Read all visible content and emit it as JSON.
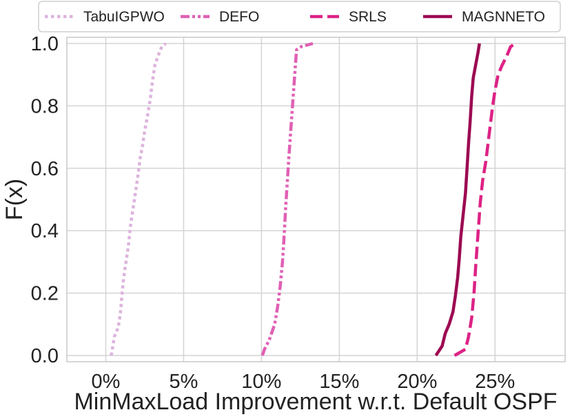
{
  "chart_data": {
    "type": "line",
    "title": "",
    "xlabel": "MinMaxLoad Improvement w.r.t. Default OSPF",
    "ylabel": "F(x)",
    "xlim": [
      -2.5,
      29.5
    ],
    "ylim": [
      -0.02,
      1.02
    ],
    "xticks": [
      0,
      5,
      10,
      15,
      20,
      25
    ],
    "xtick_labels": [
      "0%",
      "5%",
      "10%",
      "15%",
      "20%",
      "25%"
    ],
    "yticks": [
      0.0,
      0.2,
      0.4,
      0.6,
      0.8,
      1.0
    ],
    "ytick_labels": [
      "0.0",
      "0.2",
      "0.4",
      "0.6",
      "0.8",
      "1.0"
    ],
    "grid": true,
    "legend_position": "top",
    "series": [
      {
        "name": "TabuIGPWO",
        "color": "#dcb3dc",
        "dash": "dotted",
        "x": [
          0.35,
          0.45,
          0.55,
          0.8,
          0.95,
          1.05,
          1.15,
          1.3,
          1.45,
          1.6,
          1.75,
          1.9,
          2.05,
          2.2,
          2.35,
          2.5,
          2.65,
          2.85,
          3.0,
          3.15,
          3.35,
          3.6,
          3.85
        ],
        "y": [
          0.0,
          0.03,
          0.06,
          0.09,
          0.14,
          0.2,
          0.25,
          0.3,
          0.35,
          0.42,
          0.47,
          0.52,
          0.57,
          0.63,
          0.67,
          0.72,
          0.76,
          0.82,
          0.88,
          0.93,
          0.96,
          0.99,
          1.0
        ]
      },
      {
        "name": "DEFO",
        "color": "#e060b4",
        "dash": "dashdotdot",
        "x": [
          10.05,
          10.2,
          10.5,
          10.85,
          11.05,
          11.2,
          11.35,
          11.45,
          11.55,
          11.65,
          11.75,
          11.85,
          11.95,
          12.05,
          12.15,
          12.25,
          12.55,
          13.3
        ],
        "y": [
          0.0,
          0.02,
          0.05,
          0.1,
          0.16,
          0.22,
          0.3,
          0.38,
          0.47,
          0.55,
          0.63,
          0.7,
          0.77,
          0.84,
          0.91,
          0.98,
          0.99,
          1.0
        ]
      },
      {
        "name": "SRLS",
        "color": "#dd2286",
        "dash": "dashed",
        "x": [
          22.4,
          23.1,
          23.3,
          23.5,
          23.65,
          23.75,
          23.85,
          23.95,
          24.05,
          24.2,
          24.4,
          24.55,
          24.7,
          24.85,
          25.0,
          25.2,
          25.45,
          25.75,
          26.0,
          26.3
        ],
        "y": [
          0.0,
          0.02,
          0.06,
          0.12,
          0.2,
          0.28,
          0.35,
          0.42,
          0.49,
          0.56,
          0.62,
          0.68,
          0.74,
          0.8,
          0.85,
          0.9,
          0.93,
          0.96,
          0.99,
          1.0
        ]
      },
      {
        "name": "MAGNNETO",
        "color": "#9c0a52",
        "dash": "solid",
        "x": [
          21.2,
          21.6,
          21.8,
          22.05,
          22.3,
          22.45,
          22.6,
          22.7,
          22.8,
          22.95,
          23.1,
          23.2,
          23.3,
          23.4,
          23.5,
          23.6,
          23.75,
          23.9,
          24.0
        ],
        "y": [
          0.0,
          0.03,
          0.07,
          0.1,
          0.14,
          0.19,
          0.25,
          0.31,
          0.38,
          0.45,
          0.52,
          0.6,
          0.68,
          0.75,
          0.83,
          0.89,
          0.93,
          0.97,
          1.0
        ]
      }
    ]
  }
}
